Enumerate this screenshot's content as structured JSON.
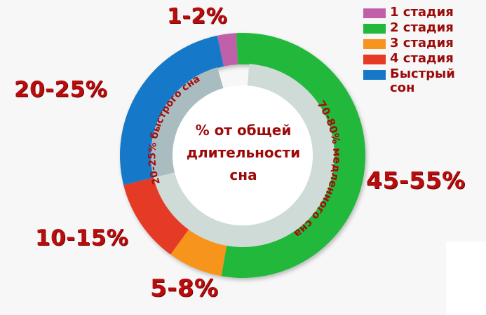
{
  "chart_data": {
    "type": "pie",
    "variant": "donut",
    "title": "% от общей длительности сна",
    "categories": [
      "1 стадия",
      "2 стадия",
      "3 стадия",
      "4 стадия",
      "Быстрый сон"
    ],
    "values_range_pct": [
      [
        1,
        2
      ],
      [
        45,
        55
      ],
      [
        5,
        8
      ],
      [
        10,
        15
      ],
      [
        20,
        25
      ]
    ],
    "values": [
      1.5,
      50,
      6.5,
      12.5,
      22.5
    ],
    "labels": [
      "1-2%",
      "45-55%",
      "5-8%",
      "10-15%",
      "20-25%"
    ],
    "colors": [
      "#c060a8",
      "#22b83a",
      "#f7941d",
      "#e53b26",
      "#1878c8"
    ],
    "inner_ring": [
      {
        "label": "70-80% медленного сна",
        "range_pct": [
          70,
          80
        ],
        "color": "#cfdbd6"
      },
      {
        "label": "20-25% быстрого сна",
        "range_pct": [
          20,
          25
        ],
        "color": "#a9bcc0"
      }
    ],
    "legend_position": "top-right"
  },
  "center": {
    "line1": "% от общей",
    "line2": "длительности",
    "line3": "сна"
  },
  "legend": {
    "items": [
      {
        "label": "1 стадия",
        "color": "#c060a8"
      },
      {
        "label": "2 стадия",
        "color": "#22b83a"
      },
      {
        "label": "3 стадия",
        "color": "#f7941d"
      },
      {
        "label": "4 стадия",
        "color": "#e53b26"
      },
      {
        "label": "Быстрый",
        "label2": "сон",
        "color": "#1878c8"
      }
    ]
  },
  "labels": {
    "stage1": "1-2%",
    "stage2": "45-55%",
    "stage3": "5-8%",
    "stage4": "10-15%",
    "rem": "20-25%",
    "inner_nrem": "70-80% медленного сна",
    "inner_rem": "20-25% быстрого сна"
  }
}
